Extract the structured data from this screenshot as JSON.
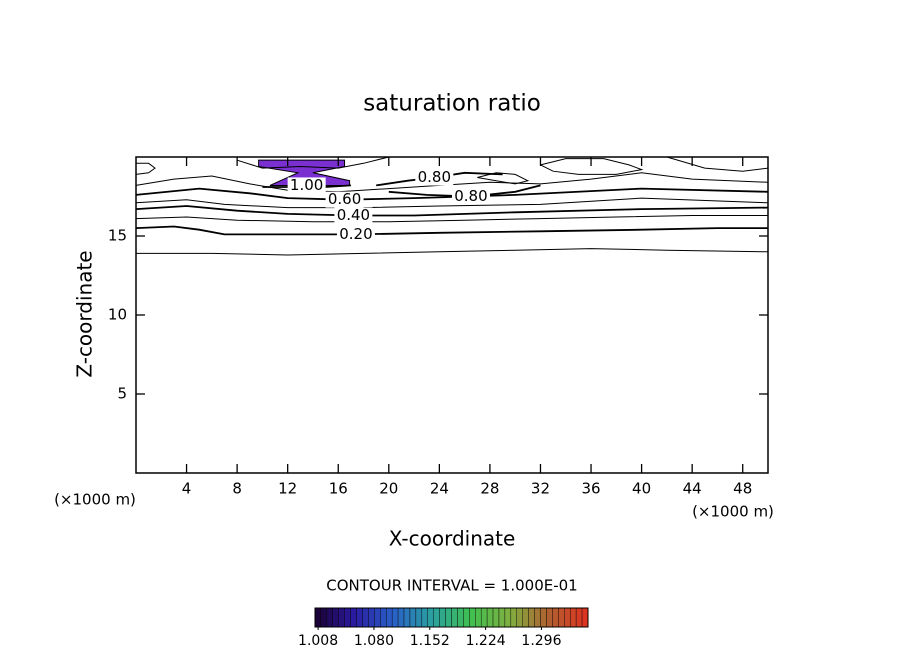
{
  "chart_data": {
    "type": "contour",
    "title": "saturation ratio",
    "x_label": "X-coordinate",
    "y_label": "Z-coordinate",
    "x_unit": "(×1000 m)",
    "y_unit": "(×1000 m)",
    "note": "CONTOUR INTERVAL = 1.000E-01",
    "xlim": [
      0,
      50
    ],
    "ylim": [
      0,
      20
    ],
    "xticks": [
      4,
      8,
      12,
      16,
      20,
      24,
      28,
      32,
      36,
      40,
      44,
      48
    ],
    "yticks": [
      5,
      10,
      15
    ],
    "line_color": "#000000",
    "contours": [
      {
        "x": [
          0,
          6,
          12,
          18,
          24,
          30,
          36,
          42,
          50
        ],
        "y": [
          13.9,
          13.9,
          13.8,
          13.9,
          14.0,
          14.1,
          14.2,
          14.1,
          14.0
        ]
      },
      {
        "label": "0.20",
        "x": [
          0,
          3,
          5,
          7,
          12,
          17.4,
          24,
          32,
          40,
          46,
          50
        ],
        "y": [
          15.5,
          15.6,
          15.4,
          15.1,
          15.1,
          15.1,
          15.2,
          15.3,
          15.4,
          15.5,
          15.5
        ]
      },
      {
        "x": [
          0,
          4,
          8,
          14,
          20,
          26,
          32,
          38,
          44,
          50
        ],
        "y": [
          16.1,
          16.2,
          16.0,
          15.9,
          15.9,
          16.0,
          16.1,
          16.2,
          16.3,
          16.3
        ]
      },
      {
        "label": "0.40",
        "x": [
          0,
          4,
          8,
          12,
          17.2,
          22,
          30,
          40,
          50
        ],
        "y": [
          16.7,
          16.9,
          16.6,
          16.4,
          16.3,
          16.3,
          16.5,
          16.7,
          16.8
        ]
      },
      {
        "x": [
          0,
          4,
          7,
          12,
          18,
          24,
          32,
          40,
          50
        ],
        "y": [
          17.1,
          17.3,
          17.0,
          16.8,
          16.8,
          16.9,
          17.0,
          17.4,
          17.1
        ]
      },
      {
        "label": "0.60",
        "x": [
          0,
          5,
          9,
          12,
          16.5,
          22,
          30,
          40,
          50
        ],
        "y": [
          17.6,
          18.0,
          17.7,
          17.4,
          17.3,
          17.4,
          17.6,
          18.0,
          17.8
        ]
      },
      {
        "x": [
          0,
          3,
          6,
          9,
          12,
          16,
          20,
          24,
          28,
          32,
          36,
          40,
          44,
          50
        ],
        "y": [
          18.2,
          18.6,
          18.8,
          18.3,
          17.9,
          17.8,
          18.0,
          18.2,
          18.4,
          18.3,
          18.6,
          19.0,
          18.6,
          18.4
        ]
      },
      {
        "label": "0.80",
        "x": [
          19,
          21.5,
          23.6,
          26,
          29
        ],
        "y": [
          18.2,
          18.5,
          18.7,
          19.0,
          18.9
        ]
      },
      {
        "label": "0.80",
        "x": [
          20,
          23,
          26.5,
          30,
          32
        ],
        "y": [
          17.8,
          17.6,
          17.5,
          17.8,
          18.2
        ]
      },
      {
        "x": [
          27,
          28.5,
          30,
          31,
          30,
          28.5,
          27
        ],
        "y": [
          18.7,
          19.0,
          18.9,
          18.5,
          18.3,
          18.5,
          18.7
        ]
      },
      {
        "label": "1.00",
        "x": [
          10,
          12,
          13.5,
          15,
          17
        ],
        "y": [
          18.1,
          18.1,
          18.2,
          18.1,
          18.2
        ]
      },
      {
        "x": [
          0,
          1,
          1.5,
          1,
          0
        ],
        "y": [
          19.6,
          19.6,
          19.3,
          19.0,
          18.9
        ]
      },
      {
        "x": [
          8,
          10,
          13,
          16,
          18,
          20
        ],
        "y": [
          19.8,
          19.3,
          19.4,
          19.3,
          19.6,
          20
        ]
      },
      {
        "x": [
          32,
          34,
          37,
          39,
          40,
          38,
          35,
          33,
          32
        ],
        "y": [
          19.5,
          19.9,
          19.9,
          19.5,
          19.2,
          18.9,
          18.9,
          19.1,
          19.5
        ]
      },
      {
        "x": [
          42,
          45,
          48,
          50
        ],
        "y": [
          20,
          19.3,
          19.1,
          19.3
        ]
      }
    ],
    "fill": {
      "color": "#7a2fd0",
      "x": [
        9.7,
        16.5,
        16.5,
        14.0,
        16.9,
        16.9,
        10.6,
        12.8,
        9.7
      ],
      "y": [
        19.8,
        19.8,
        19.4,
        19.0,
        18.5,
        18.2,
        18.2,
        19.0,
        19.4
      ]
    },
    "colorbar": {
      "lim": [
        1.004,
        1.356
      ],
      "ticks": [
        1.008,
        {
          "value": 1.08,
          "label": "1.080"
        },
        1.152,
        1.224,
        1.296
      ],
      "colors": [
        "#1a0030",
        "#2a1aa0",
        "#2a60c8",
        "#2aa0a0",
        "#40c050",
        "#80b040",
        "#b06030",
        "#e03020"
      ]
    }
  }
}
